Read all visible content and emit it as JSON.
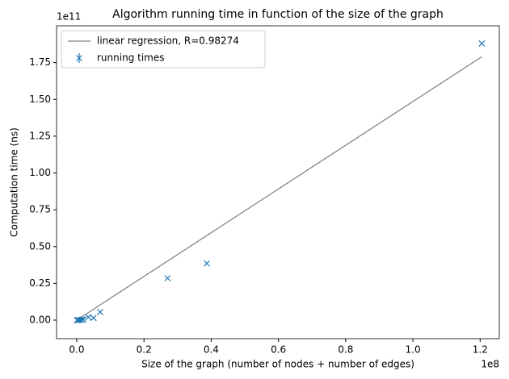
{
  "chart_data": {
    "type": "scatter",
    "title": "Algorithm running time in function of the size of the graph",
    "x_label": "Size of the graph (number of nodes + number of edges)",
    "y_label": "Computation time (ns)",
    "x_offset_label": "1e8",
    "y_offset_label": "1e11",
    "xlim": [
      -6000000,
      125700000
    ],
    "ylim": [
      -12600000000,
      200000000000
    ],
    "xticks": [
      {
        "value": 0,
        "label": "0.0"
      },
      {
        "value": 20000000,
        "label": "0.2"
      },
      {
        "value": 40000000,
        "label": "0.4"
      },
      {
        "value": 60000000,
        "label": "0.6"
      },
      {
        "value": 80000000,
        "label": "0.8"
      },
      {
        "value": 100000000,
        "label": "1.0"
      },
      {
        "value": 120000000,
        "label": "1.2"
      }
    ],
    "yticks": [
      {
        "value": 0,
        "label": "0.00"
      },
      {
        "value": 25000000000,
        "label": "0.25"
      },
      {
        "value": 50000000000,
        "label": "0.50"
      },
      {
        "value": 75000000000,
        "label": "0.75"
      },
      {
        "value": 100000000000,
        "label": "1.00"
      },
      {
        "value": 125000000000,
        "label": "1.25"
      },
      {
        "value": 150000000000,
        "label": "1.50"
      },
      {
        "value": 175000000000,
        "label": "1.75"
      }
    ],
    "legend": "upper left",
    "series": [
      {
        "name": "linear regression, R=0.98274",
        "color": "#808080",
        "kind": "line",
        "x": [
          100000,
          120500000
        ],
        "values": [
          160000000,
          179000000000
        ]
      },
      {
        "name": "running times",
        "color": "#1f77b4",
        "kind": "scatter",
        "x": [
          120500000,
          38700000,
          27000000,
          7000000,
          5000000,
          3500000,
          2000000,
          1500000,
          1000000,
          500000,
          200000,
          100000
        ],
        "values": [
          188000000000,
          38500000000,
          28500000000,
          5500000000,
          1500000000,
          2000000000,
          500000000,
          300000000,
          100000000,
          50000000,
          10000000,
          5000000
        ]
      }
    ]
  }
}
